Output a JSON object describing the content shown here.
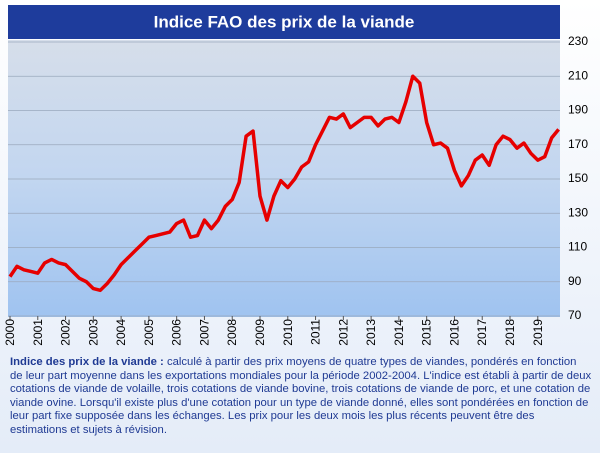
{
  "chart_data": {
    "type": "line",
    "title": "Indice FAO des prix de la viande",
    "x": [
      2000,
      2000.25,
      2000.5,
      2000.75,
      2001,
      2001.25,
      2001.5,
      2001.75,
      2002,
      2002.25,
      2002.5,
      2002.75,
      2003,
      2003.25,
      2003.5,
      2003.75,
      2004,
      2004.25,
      2004.5,
      2004.75,
      2005,
      2005.25,
      2005.5,
      2005.75,
      2006,
      2006.25,
      2006.5,
      2006.75,
      2007,
      2007.25,
      2007.5,
      2007.75,
      2008,
      2008.25,
      2008.5,
      2008.75,
      2009,
      2009.25,
      2009.5,
      2009.75,
      2010,
      2010.25,
      2010.5,
      2010.75,
      2011,
      2011.25,
      2011.5,
      2011.75,
      2012,
      2012.25,
      2012.5,
      2012.75,
      2013,
      2013.25,
      2013.5,
      2013.75,
      2014,
      2014.25,
      2014.5,
      2014.75,
      2015,
      2015.25,
      2015.5,
      2015.75,
      2016,
      2016.25,
      2016.5,
      2016.75,
      2017,
      2017.25,
      2017.5,
      2017.75,
      2018,
      2018.25,
      2018.5,
      2018.75,
      2019,
      2019.25,
      2019.5,
      2019.75
    ],
    "series": [
      {
        "color": "#e60000",
        "values": [
          93,
          99,
          97,
          96,
          95,
          101,
          103,
          101,
          100,
          96,
          92,
          90,
          86,
          85,
          89,
          94,
          100,
          104,
          108,
          112,
          116,
          117,
          118,
          119,
          124,
          126,
          116,
          117,
          126,
          121,
          126,
          134,
          138,
          148,
          175,
          178,
          140,
          126,
          140,
          149,
          145,
          150,
          157,
          160,
          170,
          178,
          186,
          185,
          188,
          180,
          183,
          186,
          186,
          181,
          185,
          186,
          183,
          195,
          210,
          206,
          183,
          170,
          171,
          168,
          155,
          146,
          152,
          161,
          164,
          158,
          170,
          175,
          173,
          168,
          171,
          165,
          161,
          163,
          174,
          179
        ]
      }
    ],
    "xlim": [
      2000,
      2019.8
    ],
    "xticks": [
      2000,
      2001,
      2002,
      2003,
      2004,
      2005,
      2006,
      2007,
      2008,
      2009,
      2010,
      2011,
      2012,
      2013,
      2014,
      2015,
      2016,
      2017,
      2018,
      2019
    ],
    "ylim": [
      70,
      230
    ],
    "yticks": [
      70,
      90,
      110,
      130,
      150,
      170,
      190,
      210,
      230
    ],
    "grid": true
  },
  "caption": {
    "label": "Indice des prix de la viande :",
    "text": "calculé à partir des prix moyens de quatre types de viandes, pondérés en fonction de leur part moyenne dans les exportations mondiales pour la période 2002-2004. L'indice est établi à partir de deux cotations de viande de volaille, trois cotations de viande bovine, trois cotations de viande de porc, et une cotation de viande ovine. Lorsqu'il existe plus d'une cotation pour un type de viande donné, elles sont pondérées en fonction de leur part fixe supposée dans les échanges. Les prix pour les deux mois les plus récents peuvent être des estimations et sujets à révision."
  }
}
